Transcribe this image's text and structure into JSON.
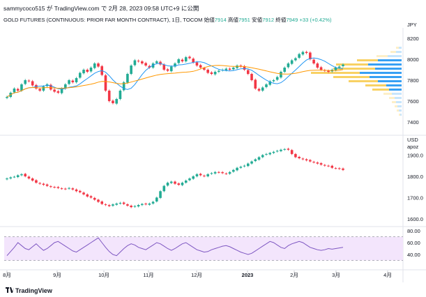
{
  "header": {
    "author_line": "sammycoco515 が TradingView.com で 2月 28, 2023 09:58 UTC+9 に公開",
    "symbol": "GOLD FUTURES (CONTINUOUS: PRIOR FAR MONTH CONTRACT), 1日, TOCOM",
    "open_label": "始値",
    "open": "7914",
    "high_label": "高値",
    "high": "7951",
    "low_label": "安値",
    "low": "7912",
    "close_label": "終値",
    "close": "7949",
    "change": "+33 (+0.42%)"
  },
  "footer": {
    "brand": "TradingView"
  },
  "colors": {
    "up": "#22ab94",
    "down": "#f23645",
    "ma_fast": "#2196f3",
    "ma_slow": "#ff9800",
    "vp_up": "#f7c948",
    "vp_down": "#2196f3",
    "rsi": "#7e57c2",
    "rsi_band": "#f3e5fc"
  },
  "chart_data": [
    {
      "type": "candlestick",
      "panel": "main",
      "unit_label": "JPY",
      "ylim": [
        7300,
        8300
      ],
      "yticks": [
        8200,
        8000,
        7800,
        7600,
        7400
      ],
      "xticks": [
        "8月",
        "9月",
        "10月",
        "11月",
        "12月",
        "2023",
        "2月",
        "3月",
        "4月"
      ],
      "last_price": 7949,
      "overlays": [
        "moving average (fast)",
        "moving average (slow)",
        "volume profile"
      ],
      "series_close": [
        7640,
        7680,
        7720,
        7700,
        7760,
        7800,
        7790,
        7750,
        7720,
        7700,
        7740,
        7760,
        7710,
        7690,
        7680,
        7720,
        7760,
        7800,
        7780,
        7820,
        7870,
        7900,
        7880,
        7920,
        7960,
        7930,
        7850,
        7700,
        7600,
        7580,
        7620,
        7700,
        7780,
        7860,
        7940,
        7990,
        7980,
        7960,
        7940,
        7920,
        7960,
        7980,
        7950,
        7900,
        7890,
        7930,
        7960,
        8000,
        7980,
        8020,
        8010,
        7970,
        7940,
        7920,
        7900,
        7870,
        7860,
        7880,
        7890,
        7900,
        7910,
        7900,
        7920,
        7940,
        7930,
        7900,
        7860,
        7800,
        7720,
        7700,
        7730,
        7760,
        7790,
        7800,
        7830,
        7880,
        7920,
        7960,
        7990,
        8010,
        8050,
        8070,
        8060,
        8000,
        7960,
        7920,
        7900,
        7890,
        7880,
        7900,
        7920,
        7930,
        7949
      ]
    },
    {
      "type": "candlestick",
      "panel": "middle",
      "unit_label": "USD",
      "sub_label": "apoz",
      "ylim": [
        1580,
        1980
      ],
      "yticks": [
        1900.0,
        1800.0,
        1700.0,
        1600.0
      ],
      "series_close": [
        1790,
        1795,
        1798,
        1805,
        1810,
        1800,
        1790,
        1780,
        1770,
        1765,
        1760,
        1755,
        1750,
        1748,
        1745,
        1742,
        1740,
        1745,
        1738,
        1730,
        1725,
        1715,
        1705,
        1700,
        1690,
        1680,
        1670,
        1665,
        1660,
        1668,
        1672,
        1675,
        1670,
        1662,
        1655,
        1660,
        1665,
        1670,
        1668,
        1672,
        1680,
        1700,
        1730,
        1755,
        1770,
        1775,
        1765,
        1760,
        1770,
        1780,
        1790,
        1800,
        1810,
        1805,
        1800,
        1810,
        1815,
        1820,
        1818,
        1815,
        1812,
        1820,
        1830,
        1840,
        1845,
        1850,
        1860,
        1870,
        1880,
        1890,
        1900,
        1905,
        1910,
        1915,
        1920,
        1925,
        1928,
        1925,
        1905,
        1890,
        1885,
        1880,
        1875,
        1870,
        1865,
        1860,
        1855,
        1850,
        1848,
        1840,
        1838,
        1835,
        1830
      ]
    },
    {
      "type": "line",
      "panel": "rsi",
      "ylim": [
        20,
        80
      ],
      "yticks": [
        80.0,
        60.0,
        40.0
      ],
      "series_values": [
        38,
        45,
        52,
        60,
        55,
        50,
        48,
        53,
        58,
        52,
        47,
        50,
        55,
        60,
        62,
        58,
        54,
        50,
        46,
        44,
        48,
        52,
        56,
        60,
        64,
        68,
        60,
        52,
        45,
        40,
        38,
        44,
        50,
        55,
        58,
        56,
        52,
        50,
        48,
        52,
        56,
        60,
        58,
        54,
        50,
        47,
        50,
        54,
        58,
        60,
        56,
        52,
        48,
        46,
        44,
        45,
        48,
        50,
        52,
        54,
        55,
        53,
        50,
        47,
        44,
        42,
        40,
        42,
        46,
        50,
        54,
        58,
        62,
        60,
        56,
        52,
        50,
        55,
        58,
        60,
        62,
        60,
        56,
        52,
        50,
        48,
        47,
        48,
        50,
        49,
        50,
        51,
        52
      ]
    }
  ]
}
